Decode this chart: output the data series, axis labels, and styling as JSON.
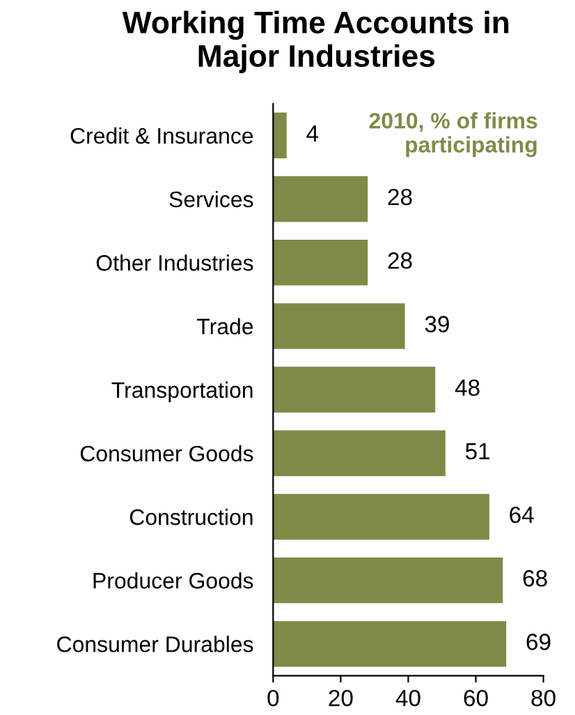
{
  "chart_data": {
    "type": "bar",
    "orientation": "horizontal",
    "title": "Working Time Accounts in\nMajor Industries",
    "categories": [
      "Credit & Insurance",
      "Services",
      "Other Industries",
      "Trade",
      "Transportation",
      "Consumer Goods",
      "Construction",
      "Producer Goods",
      "Consumer Durables"
    ],
    "values": [
      4,
      28,
      28,
      39,
      48,
      51,
      64,
      68,
      69
    ],
    "color": "#7f8a48",
    "xlim": [
      0,
      80
    ],
    "xticks": [
      0,
      20,
      40,
      60,
      80
    ],
    "data_labels": true,
    "grid": false,
    "legend": false,
    "annotations": [
      "2010, % of firms\nparticipating"
    ]
  }
}
